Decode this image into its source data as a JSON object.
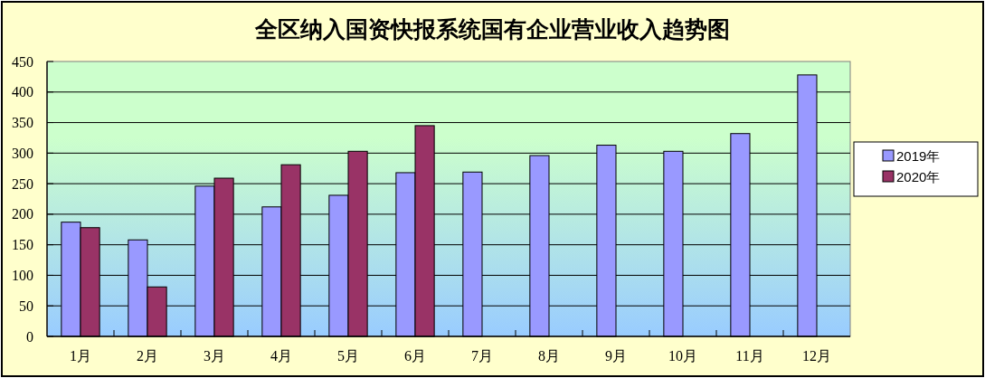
{
  "chart_data": {
    "type": "bar",
    "title": "全区纳入国资快报系统国有企业营业收入趋势图",
    "categories": [
      "1月",
      "2月",
      "3月",
      "4月",
      "5月",
      "6月",
      "7月",
      "8月",
      "9月",
      "10月",
      "11月",
      "12月"
    ],
    "series": [
      {
        "name": "2019年",
        "color": "#9999ff",
        "values": [
          187,
          158,
          246,
          212,
          231,
          268,
          269,
          296,
          313,
          303,
          332,
          428
        ]
      },
      {
        "name": "2020年",
        "color": "#993366",
        "values": [
          178,
          81,
          259,
          281,
          303,
          345,
          null,
          null,
          null,
          null,
          null,
          null
        ]
      }
    ],
    "ylim": [
      0,
      450
    ],
    "yticks": [
      0,
      50,
      100,
      150,
      200,
      250,
      300,
      350,
      400,
      450
    ],
    "grid": "y",
    "legend": "right"
  }
}
